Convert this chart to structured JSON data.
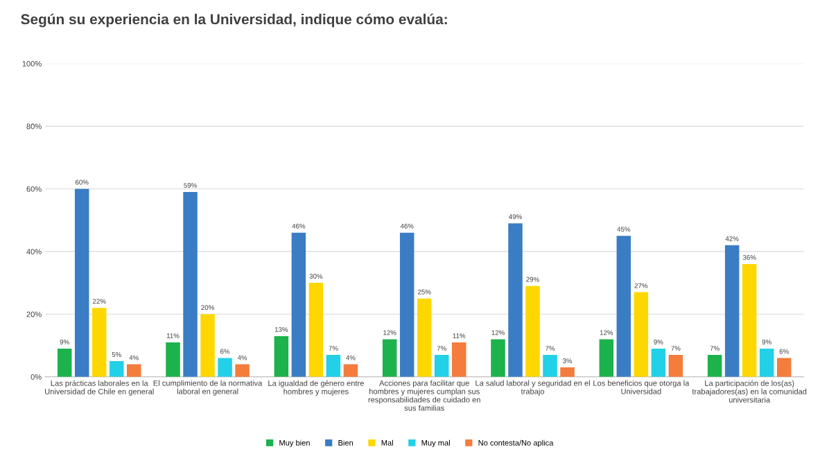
{
  "chart_data": {
    "type": "bar",
    "title": "Según su experiencia en la Universidad, indique cómo evalúa:",
    "categories": [
      "Las prácticas laborales en la Universidad de Chile en general",
      "El cumplimiento de la normativa laboral en general",
      "La igualdad de género entre hombres y mujeres",
      "Acciones para facilitar que hombres y mujeres cumplan sus responsabilidades de cuidado en sus familias",
      "La salud laboral y seguridad en el trabajo",
      "Los beneficios que otorga la Universidad",
      "La participación de los(as) trabajadores(as) en la comunidad universitaria"
    ],
    "series": [
      {
        "name": "Muy bien",
        "color": "#1db24b",
        "values": [
          9,
          11,
          13,
          12,
          12,
          12,
          7
        ],
        "value_labels": [
          "9%",
          "11%",
          "13%",
          "12%",
          "12%",
          "12%",
          "7%"
        ]
      },
      {
        "name": "Bien",
        "color": "#3b7dc4",
        "values": [
          60,
          59,
          46,
          46,
          49,
          45,
          42
        ],
        "value_labels": [
          "60%",
          "59%",
          "46%",
          "46%",
          "49%",
          "45%",
          "42%"
        ]
      },
      {
        "name": "Mal",
        "color": "#ffd700",
        "values": [
          22,
          20,
          30,
          25,
          29,
          27,
          36
        ],
        "value_labels": [
          "22%",
          "20%",
          "30%",
          "25%",
          "29%",
          "27%",
          "36%"
        ]
      },
      {
        "name": "Muy mal",
        "color": "#22d0e8",
        "values": [
          5,
          6,
          7,
          7,
          7,
          9,
          9
        ],
        "value_labels": [
          "5%",
          "6%",
          "7%",
          "7%",
          "7%",
          "9%",
          "9%"
        ]
      },
      {
        "name": "No contesta/No aplica",
        "color": "#f47c3c",
        "values": [
          4,
          4,
          4,
          11,
          3,
          7,
          6
        ],
        "value_labels": [
          "4%",
          "4%",
          "4%",
          "11%",
          "3%",
          "7%",
          "6%"
        ]
      }
    ],
    "ylim": [
      0,
      100
    ],
    "yticks": [
      {
        "value": 0,
        "label": "0%"
      },
      {
        "value": 20,
        "label": "20%"
      },
      {
        "value": 40,
        "label": "40%"
      },
      {
        "value": 60,
        "label": "60%"
      },
      {
        "value": 80,
        "label": "80%"
      },
      {
        "value": 100,
        "label": "100%"
      }
    ],
    "grid": "y",
    "legend": "bottom"
  }
}
